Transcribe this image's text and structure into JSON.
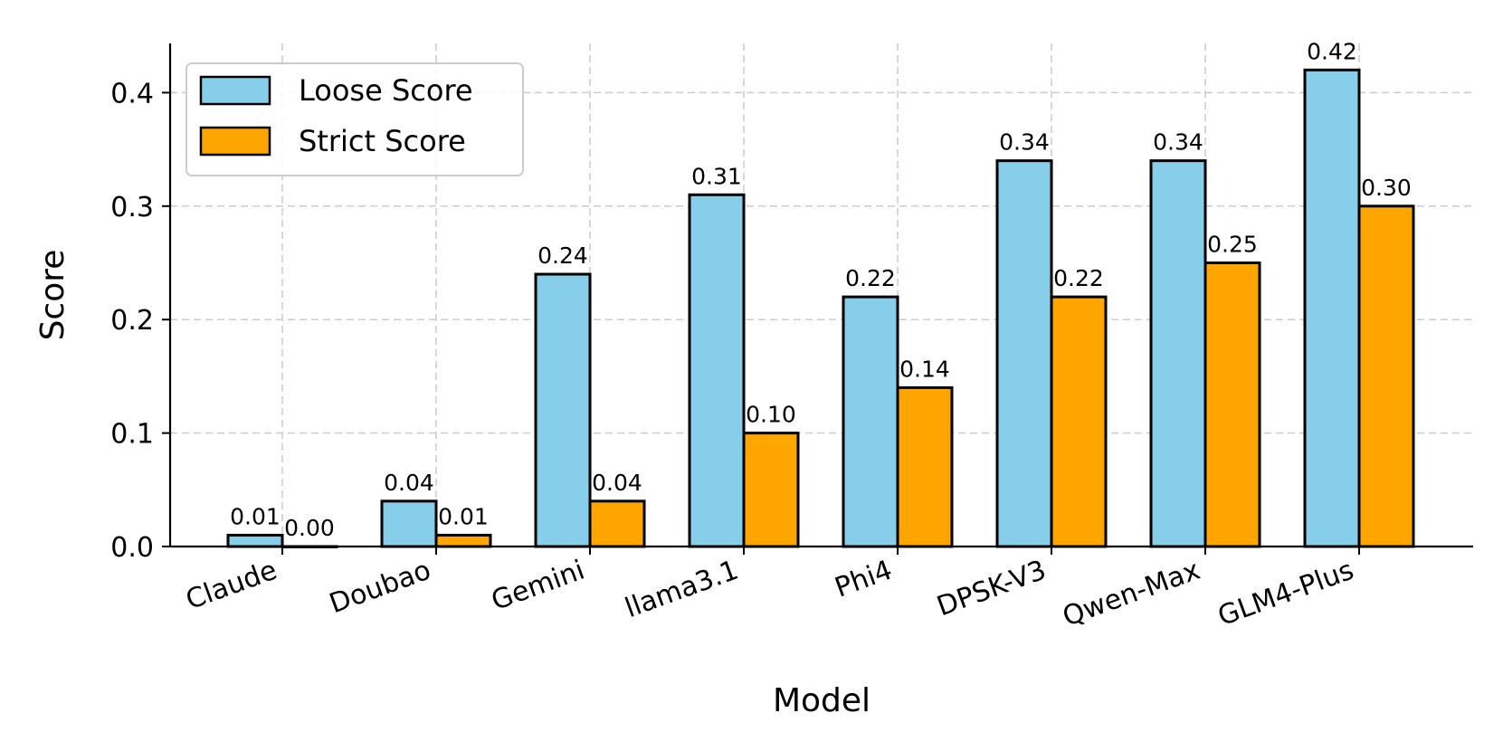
{
  "chart_data": {
    "type": "bar",
    "title": "",
    "xlabel": "Model",
    "ylabel": "Score",
    "ylim": [
      0,
      0.44
    ],
    "yticks": [
      "0.0",
      "0.1",
      "0.2",
      "0.3",
      "0.4"
    ],
    "ytick_values": [
      0,
      0.1,
      0.2,
      0.3,
      0.4
    ],
    "grid": true,
    "legend_position": "top-left",
    "categories": [
      "Claude",
      "Doubao",
      "Gemini",
      "llama3.1",
      "Phi4",
      "DPSK-V3",
      "Qwen-Max",
      "GLM4-Plus"
    ],
    "series": [
      {
        "name": "Loose Score",
        "color": "#87ceeb",
        "values": [
          0.01,
          0.04,
          0.24,
          0.31,
          0.22,
          0.34,
          0.34,
          0.42
        ],
        "labels": [
          "0.01",
          "0.04",
          "0.24",
          "0.31",
          "0.22",
          "0.34",
          "0.34",
          "0.42"
        ]
      },
      {
        "name": "Strict Score",
        "color": "#ffa500",
        "values": [
          0.0,
          0.01,
          0.04,
          0.1,
          0.14,
          0.22,
          0.25,
          0.3
        ],
        "labels": [
          "0.00",
          "0.01",
          "0.04",
          "0.10",
          "0.14",
          "0.22",
          "0.25",
          "0.30"
        ]
      }
    ]
  }
}
